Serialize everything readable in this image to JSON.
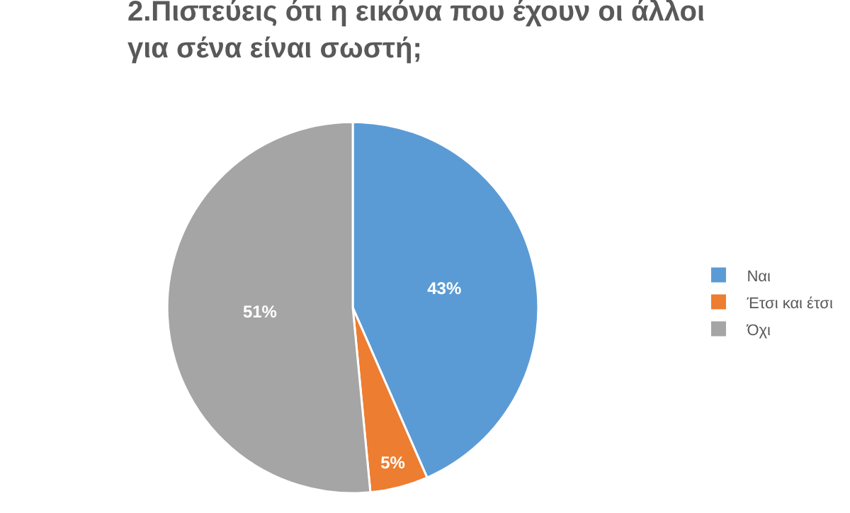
{
  "chart_data": {
    "type": "pie",
    "title": "2.Πιστεύεις ότι η εικόνα που έχουν οι άλλοι\nγια σένα είναι σωστή;",
    "categories": [
      "Ναι",
      "Έτσι και έτσι",
      "Όχι"
    ],
    "values": [
      43,
      5,
      51
    ],
    "colors": [
      "#5b9bd5",
      "#ed7d31",
      "#a5a5a5"
    ],
    "value_labels": [
      "43%",
      "5%",
      "51%"
    ],
    "legend": "right"
  }
}
